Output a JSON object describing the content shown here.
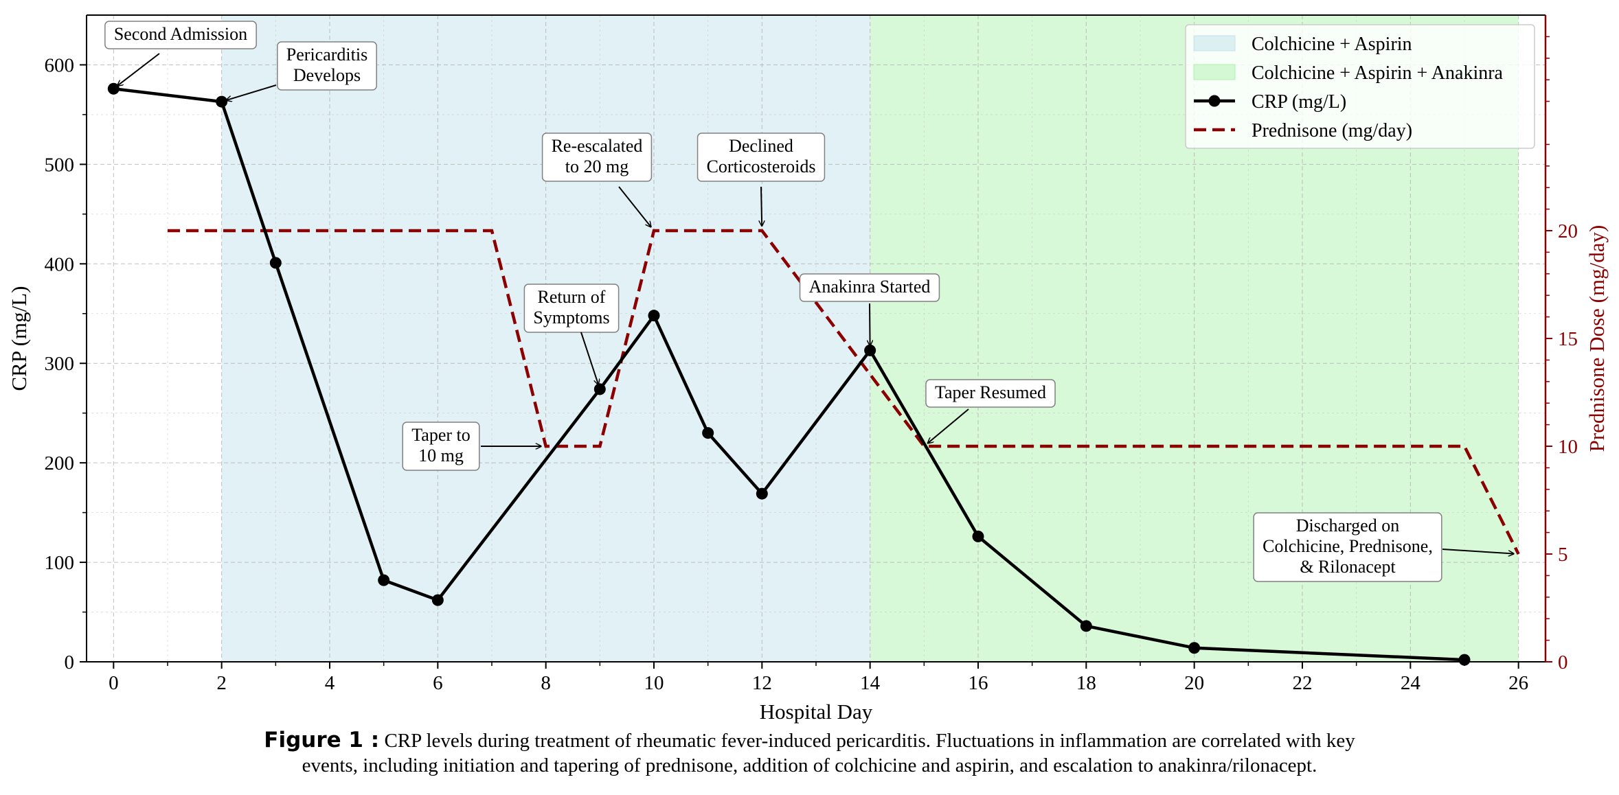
{
  "chart_data": {
    "type": "line",
    "xlabel": "Hospital Day",
    "ylabel": "CRP (mg/L)",
    "y2label": "Prednisone Dose (mg/day)",
    "xlim": [
      -0.5,
      26.5
    ],
    "ylim": [
      0,
      650
    ],
    "y2lim": [
      0,
      30
    ],
    "xticks": [
      0,
      2,
      4,
      6,
      8,
      10,
      12,
      14,
      16,
      18,
      20,
      22,
      24,
      26
    ],
    "yticks": [
      0,
      100,
      200,
      300,
      400,
      500,
      600
    ],
    "y2ticks": [
      0,
      5,
      10,
      15,
      20
    ],
    "grid": true,
    "legend_position": "top-right",
    "shaded_regions": [
      {
        "label": "Colchicine + Aspirin",
        "x_start": 2,
        "x_end": 14,
        "color": "#add8e6"
      },
      {
        "label": "Colchicine + Aspirin + Anakinra",
        "x_start": 14,
        "x_end": 26,
        "color": "#90ee90"
      }
    ],
    "series": [
      {
        "name": "CRP (mg/L)",
        "axis": "left",
        "color": "#000000",
        "style": "solid-markers",
        "x": [
          0,
          2,
          3,
          5,
          6,
          9,
          10,
          11,
          12,
          14,
          16,
          18,
          20,
          25
        ],
        "values": [
          576,
          563,
          401,
          82,
          62,
          274,
          348,
          230,
          169,
          313,
          126,
          36,
          14,
          2
        ]
      },
      {
        "name": "Prednisone (mg/day)",
        "axis": "right",
        "color": "#8b0000",
        "style": "dashed",
        "x": [
          1,
          7,
          8,
          9,
          10,
          12,
          15,
          25,
          26
        ],
        "values": [
          20,
          20,
          10,
          10,
          20,
          20,
          10,
          10,
          5
        ]
      }
    ],
    "annotations": [
      {
        "text": "Second Admission",
        "x": 0,
        "y": 576,
        "axis": "left"
      },
      {
        "text": "Pericarditis\nDevelops",
        "x": 2,
        "y": 563,
        "axis": "left"
      },
      {
        "text": "Taper to\n10 mg",
        "x": 8,
        "y": 10,
        "axis": "right"
      },
      {
        "text": "Return of\nSymptoms",
        "x": 9,
        "y": 274,
        "axis": "left"
      },
      {
        "text": "Re-escalated\nto 20 mg",
        "x": 10,
        "y": 20,
        "axis": "right"
      },
      {
        "text": "Declined\nCorticosteroids",
        "x": 12,
        "y": 20,
        "axis": "right"
      },
      {
        "text": "Anakinra Started",
        "x": 14,
        "y": 313,
        "axis": "left"
      },
      {
        "text": "Taper Resumed",
        "x": 15,
        "y": 10,
        "axis": "right"
      },
      {
        "text": "Discharged on\nColchicine, Prednisone,\n& Rilonacept",
        "x": 26,
        "y": 5,
        "axis": "right"
      }
    ]
  },
  "caption": {
    "label": "Figure 1 :",
    "line1": "CRP levels during treatment of rheumatic fever-induced pericarditis. Fluctuations in inflammation are correlated with key",
    "line2": "events, including initiation and tapering of prednisone, addition of colchicine and aspirin, and escalation to anakinra/rilonacept."
  }
}
